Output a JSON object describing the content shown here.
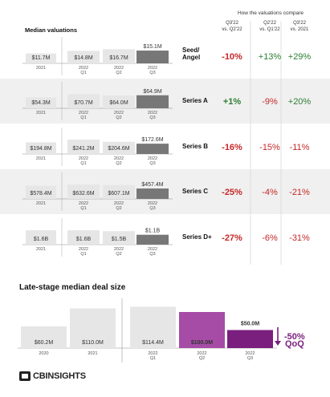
{
  "chart_data": [
    {
      "type": "bar",
      "title": "Median valuations",
      "column_header": "How the valuations compare",
      "comparison_columns": [
        "Q3'22 vs. Q2'22",
        "Q2'22 vs. Q1'22",
        "Q3'22 vs. 2021"
      ],
      "categories": [
        "2021",
        "2022 Q1",
        "2022 Q2",
        "2022 Q3"
      ],
      "series": [
        {
          "name": "Seed/ Angel",
          "values": [
            11.7,
            14.8,
            16.7,
            15.1
          ],
          "labels": [
            "$11.7M",
            "$14.8M",
            "$16.7M",
            "$15.1M"
          ],
          "changes": [
            "-10%",
            "+13%",
            "+29%"
          ],
          "ylim": [
            0,
            18
          ]
        },
        {
          "name": "Series A",
          "values": [
            54.3,
            70.7,
            64.0,
            64.9
          ],
          "labels": [
            "$54.3M",
            "$70.7M",
            "$64.0M",
            "$64.9M"
          ],
          "changes": [
            "+1%",
            "-9%",
            "+20%"
          ],
          "ylim": [
            0,
            76
          ]
        },
        {
          "name": "Series B",
          "values": [
            194.8,
            241.2,
            204.6,
            172.6
          ],
          "labels": [
            "$194.8M",
            "$241.2M",
            "$204.6M",
            "$172.6M"
          ],
          "changes": [
            "-16%",
            "-15%",
            "-11%"
          ],
          "ylim": [
            0,
            255
          ]
        },
        {
          "name": "Series C",
          "values": [
            578.4,
            632.6,
            607.1,
            457.4
          ],
          "labels": [
            "$578.4M",
            "$632.6M",
            "$607.1M",
            "$457.4M"
          ],
          "changes": [
            "-25%",
            "-4%",
            "-21%"
          ],
          "ylim": [
            0,
            670
          ]
        },
        {
          "name": "Series D+",
          "values": [
            1.6,
            1.6,
            1.5,
            1.1
          ],
          "labels": [
            "$1.6B",
            "$1.6B",
            "$1.5B",
            "$1.1B"
          ],
          "changes": [
            "-27%",
            "-6%",
            "-31%"
          ],
          "ylim": [
            0,
            1.7
          ]
        }
      ]
    },
    {
      "type": "bar",
      "title": "Late-stage median deal size",
      "categories": [
        "2020",
        "2021",
        "2022 Q1",
        "2022 Q2",
        "2022 Q3"
      ],
      "values": [
        60.2,
        110.0,
        114.4,
        100.0,
        50.0
      ],
      "labels": [
        "$60.2M",
        "$110.0M",
        "$114.4M",
        "$100.0M",
        "$50.0M"
      ],
      "ylim": [
        0,
        120
      ],
      "annotation": {
        "value": "-50%",
        "label": "QoQ"
      }
    }
  ],
  "colors": {
    "bar_light": "#e6e6e6",
    "bar_dark": "#777777",
    "row_band": "#f0f0f0",
    "negative": "#c62828",
    "positive": "#2e7d32",
    "deal_q1": "#e6e6e6",
    "deal_q2": "#a64ca6",
    "deal_q3": "#7a1f7e",
    "deal_label_q3": "#7a1f7e"
  },
  "logo": {
    "name": "CBINSIGHTS",
    "icon": "cb-logo-icon"
  }
}
